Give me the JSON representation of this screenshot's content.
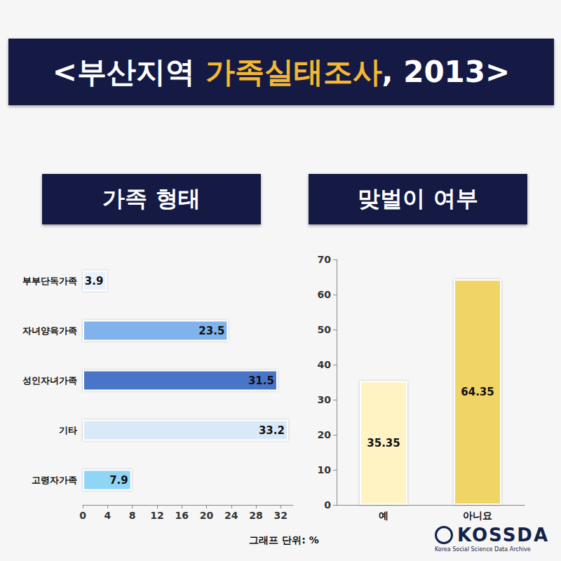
{
  "title": [
    {
      "text": "<부산지역 ",
      "color": "#ffffff"
    },
    {
      "text": "가족실태조사",
      "color": "#f5b82e"
    },
    {
      "text": ", 2013>",
      "color": "#ffffff"
    }
  ],
  "unit_note": "그래프 단위: %",
  "source": {
    "name": "KOSSDA",
    "full_name": "Korea Social Science Data Archive"
  },
  "chart_data": [
    {
      "type": "bar",
      "title": "가족 형태",
      "orientation": "horizontal",
      "categories": [
        "부부단독가족",
        "자녀양육가족",
        "성인자녀가족",
        "기타",
        "고령자가족"
      ],
      "values": [
        3.9,
        23.5,
        31.5,
        33.2,
        7.9
      ],
      "colors": [
        "#e9f2fc",
        "#80b3ec",
        "#4a74c9",
        "#d9e9f8",
        "#8fd5f6"
      ],
      "xlim": [
        0,
        34
      ],
      "xticks": [
        0,
        4,
        8,
        12,
        16,
        20,
        24,
        28,
        32
      ],
      "grid": false,
      "data_labels": true
    },
    {
      "type": "bar",
      "title": "맞벌이 여부",
      "categories": [
        "예",
        "아니요"
      ],
      "values": [
        35.35,
        64.35
      ],
      "colors": [
        "#fff3c4",
        "#f0d566"
      ],
      "ylim": [
        0,
        70
      ],
      "yticks": [
        0,
        10,
        20,
        30,
        40,
        50,
        60,
        70
      ],
      "grid": false,
      "data_labels": true
    }
  ]
}
